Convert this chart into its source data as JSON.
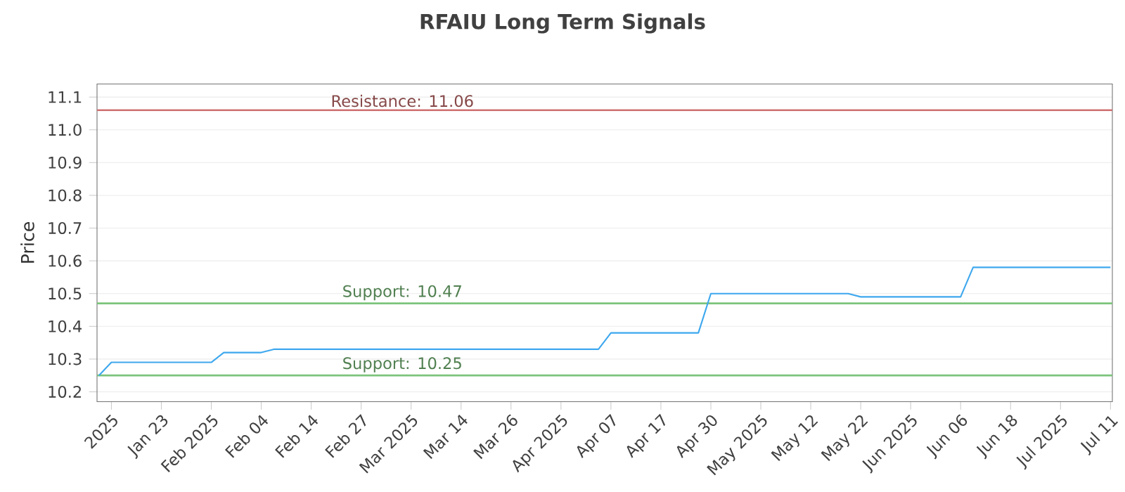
{
  "chart_data": {
    "type": "line",
    "title": "RFAIU Long Term Signals",
    "ylabel": "Price",
    "categories": [
      null,
      "2025",
      null,
      null,
      null,
      "Jan 23",
      null,
      null,
      null,
      "Feb 2025",
      null,
      null,
      null,
      "Feb 04",
      null,
      null,
      null,
      "Feb 14",
      null,
      null,
      null,
      "Feb 27",
      null,
      null,
      null,
      "Mar 2025",
      null,
      null,
      null,
      "Mar 14",
      null,
      null,
      null,
      "Mar 26",
      null,
      null,
      null,
      "Apr 2025",
      null,
      null,
      null,
      "Apr 07",
      null,
      null,
      null,
      "Apr 17",
      null,
      null,
      null,
      "Apr 30",
      null,
      null,
      null,
      "May 2025",
      null,
      null,
      null,
      "May 12",
      null,
      null,
      null,
      "May 22",
      null,
      null,
      null,
      "Jun 2025",
      null,
      null,
      null,
      "Jun 06",
      null,
      null,
      null,
      "Jun 18",
      null,
      null,
      null,
      "Jul 2025",
      null,
      null,
      null,
      "Jul 11"
    ],
    "series": [
      {
        "color": "#3ea8ee",
        "values": [
          10.25,
          10.29,
          10.29,
          10.29,
          10.29,
          10.29,
          10.29,
          10.29,
          10.29,
          10.29,
          10.32,
          10.32,
          10.32,
          10.32,
          10.33,
          10.33,
          10.33,
          10.33,
          10.33,
          10.33,
          10.33,
          10.33,
          10.33,
          10.33,
          10.33,
          10.33,
          10.33,
          10.33,
          10.33,
          10.33,
          10.33,
          10.33,
          10.33,
          10.33,
          10.33,
          10.33,
          10.33,
          10.33,
          10.33,
          10.33,
          10.33,
          10.38,
          10.38,
          10.38,
          10.38,
          10.38,
          10.38,
          10.38,
          10.38,
          10.5,
          10.5,
          10.5,
          10.5,
          10.5,
          10.5,
          10.5,
          10.5,
          10.5,
          10.5,
          10.5,
          10.5,
          10.49,
          10.49,
          10.49,
          10.49,
          10.49,
          10.49,
          10.49,
          10.49,
          10.49,
          10.58,
          10.58,
          10.58,
          10.58,
          10.58,
          10.58,
          10.58,
          10.58,
          10.58,
          10.58,
          10.58,
          10.58
        ]
      }
    ],
    "ylim": [
      10.17,
      11.14
    ],
    "yticks": [
      10.2,
      10.3,
      10.4,
      10.5,
      10.6,
      10.7,
      10.8,
      10.9,
      {
        "value": 11.0,
        "label": "11.0"
      },
      11.1
    ],
    "ref_lines": [
      {
        "axis": "y",
        "value": 11.06,
        "label": "Resistance: 11.06",
        "color": "#d07070"
      },
      {
        "axis": "y",
        "value": 10.47,
        "label": "Support: 10.47",
        "color": "#7cc47c"
      },
      {
        "axis": "y",
        "value": 10.25,
        "label": "Support: 10.25",
        "color": "#7cc47c"
      }
    ],
    "grid": "y",
    "marker": "none",
    "line_style": "solid"
  }
}
